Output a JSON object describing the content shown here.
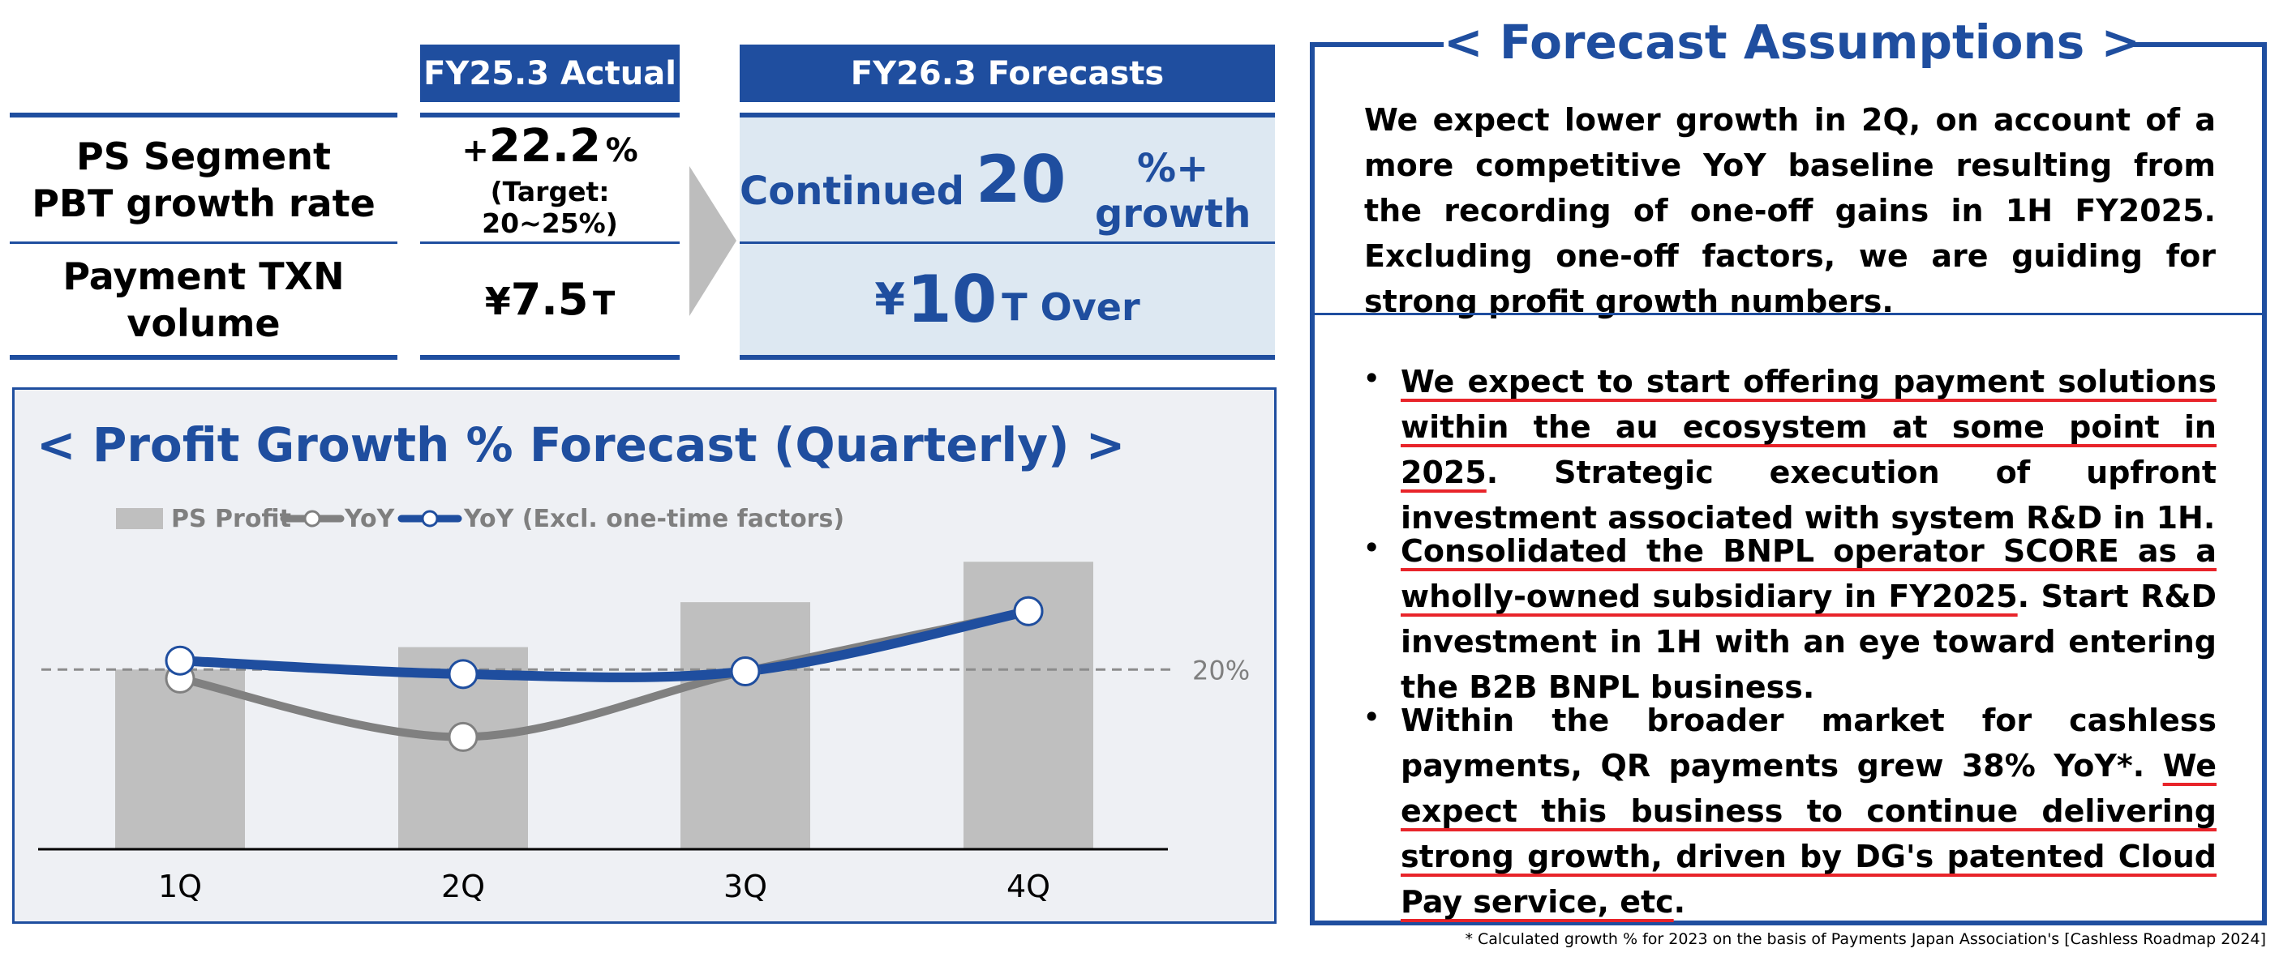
{
  "table": {
    "actual_header": "FY25.3 Actual",
    "forecast_header": "FY26.3 Forecasts",
    "rows": [
      {
        "label_line1": "PS Segment",
        "label_line2": "PBT growth rate",
        "actual_prefix": "+",
        "actual_value": "22.2",
        "actual_unit": "%",
        "actual_note": "(Target: 20~25%)",
        "forecast_pre": "Continued",
        "forecast_big": "20",
        "forecast_post": "%+ growth"
      },
      {
        "label_line1": "Payment TXN",
        "label_line2": "volume",
        "actual_prefix": "¥",
        "actual_value": "7.5",
        "actual_unit": "T",
        "forecast_pre": "¥",
        "forecast_big": "10",
        "forecast_post": "T Over"
      }
    ]
  },
  "chart_panel": {
    "open_bracket": "<",
    "title": "Profit Growth % Forecast (Quarterly)",
    "close_bracket": ">"
  },
  "chart_data": {
    "type": "bar+line",
    "title": "Profit Growth % Forecast (Quarterly)",
    "categories": [
      "1Q",
      "2Q",
      "3Q",
      "4Q"
    ],
    "legend": [
      "PS Profit",
      "YoY",
      "YoY (Excl. one-time factors)"
    ],
    "reference_line": {
      "value": 20,
      "label": "20%"
    },
    "bar_series": {
      "name": "PS Profit",
      "values": [
        20,
        22.5,
        27.5,
        32
      ],
      "color": "#bfbfbf"
    },
    "line_series": [
      {
        "name": "YoY",
        "values": [
          19,
          12.5,
          19.8,
          26.5
        ],
        "color": "#808080"
      },
      {
        "name": "YoY (Excl. one-time factors)",
        "values": [
          21,
          19.5,
          19.8,
          26.5
        ],
        "color": "#1f4e9f"
      }
    ],
    "ylim": [
      0,
      35
    ],
    "xlabel": "",
    "ylabel": ""
  },
  "assumptions": {
    "open_bracket": "<",
    "title": "Forecast Assumptions",
    "close_bracket": ">",
    "intro": "We expect lower growth in 2Q, on account of a more competitive YoY baseline resulting from the recording of one-off gains in 1H FY2025. Excluding one-off factors, we are guiding for strong profit growth numbers.",
    "bullets": [
      {
        "underlined": "We expect to start offering payment solutions within the au ecosystem at some point in 2025",
        "rest": ". Strategic execution of upfront investment associated with system R&D in 1H."
      },
      {
        "underlined": "Consolidated the BNPL operator SCORE as a wholly-owned subsidiary in FY2025",
        "rest": ". Start R&D investment in 1H with an eye toward entering the B2B BNPL business."
      },
      {
        "plain": "Within the broader market for cashless payments, QR payments grew 38% YoY*. ",
        "underlined": "We expect this business to continue delivering strong growth, driven by DG's patented Cloud Pay service, etc",
        "rest": "."
      }
    ]
  },
  "footnote": "* Calculated growth % for 2023 on the basis of Payments Japan Association's  [Cashless Roadmap 2024]"
}
